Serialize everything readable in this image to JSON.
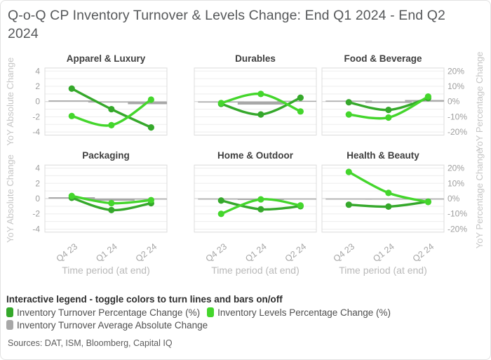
{
  "header": {
    "title": "Q-o-Q CP Inventory Turnover & Levels Change: End Q1 2024 - End Q2 2024"
  },
  "chart_data": {
    "type": "line",
    "layout": "2x3 small multiples, shared axes",
    "categories": [
      "Q4 23",
      "Q1 24",
      "Q2 24"
    ],
    "xlabel": "Time period (at end)",
    "ylabel_left": "YoY Absolute Change",
    "ylabel_right": "YoY Percentage Change",
    "yticks_left": [
      4,
      2,
      0,
      -2,
      -4
    ],
    "yticks_right": [
      "20%",
      "10%",
      "0%",
      "-10%",
      "-20%"
    ],
    "ylim_left": [
      -4.4,
      4.4
    ],
    "grid": true,
    "series_names": {
      "turnover": "Inventory Turnover Percentage Change (%)",
      "levels": "Inventory Levels Percentage Change (%)",
      "avg_abs": "Inventory Turnover Average Absolute Change"
    },
    "panels": [
      {
        "title": "Apparel & Luxury",
        "turnover": [
          1.7,
          -1.0,
          -3.4
        ],
        "levels": [
          -1.9,
          -3.1,
          0.25
        ],
        "avg_abs": [
          0.15,
          -0.02,
          -0.35
        ]
      },
      {
        "title": "Durables",
        "turnover": [
          -0.3,
          -1.7,
          0.5
        ],
        "levels": [
          -0.2,
          1.0,
          -1.3
        ],
        "avg_abs": [
          -0.02,
          -0.4,
          0.1
        ]
      },
      {
        "title": "Food & Beverage",
        "turnover": [
          -0.1,
          -1.1,
          0.45
        ],
        "levels": [
          -1.7,
          -2.1,
          0.65
        ],
        "avg_abs": [
          0.12,
          -0.18,
          0.2
        ]
      },
      {
        "title": "Packaging",
        "turnover": [
          0.1,
          -1.5,
          -0.6
        ],
        "levels": [
          0.35,
          -0.6,
          -0.2
        ],
        "avg_abs": [
          0.18,
          -0.28,
          -0.02
        ]
      },
      {
        "title": "Home & Outdoor",
        "turnover": [
          -0.25,
          -1.4,
          -1.0
        ],
        "levels": [
          -2.0,
          -0.1,
          -0.9
        ],
        "avg_abs": [
          -0.02,
          -0.18,
          -0.02
        ]
      },
      {
        "title": "Health & Beauty",
        "turnover": [
          -0.8,
          -1.05,
          -0.4
        ],
        "levels": [
          3.5,
          0.75,
          -0.45
        ],
        "avg_abs": [
          -0.02,
          -0.02,
          0.0
        ]
      }
    ]
  },
  "colors": {
    "turnover": "#35a82b",
    "levels": "#44d62c",
    "avg_abs": "#a8a8a8",
    "grid": "#ededed",
    "zero_line": "#cfcfcf",
    "panel_border": "#dcdcdc",
    "tick_text": "#9e9e9e",
    "axis_title_text": "#c6c6c6",
    "panel_title_text": "#3f3f3f"
  },
  "legend": {
    "heading": "Interactive legend - toggle colors to turn lines and bars on/off",
    "items": [
      {
        "label": "Inventory Turnover Percentage Change (%)",
        "series": "turnover"
      },
      {
        "label": "Inventory Levels Percentage Change (%)",
        "series": "levels"
      },
      {
        "label": "Inventory Turnover Average Absolute Change",
        "series": "avg_abs"
      }
    ]
  },
  "footer": {
    "sources": "Sources: DAT, ISM, Bloomberg, Capital IQ"
  }
}
